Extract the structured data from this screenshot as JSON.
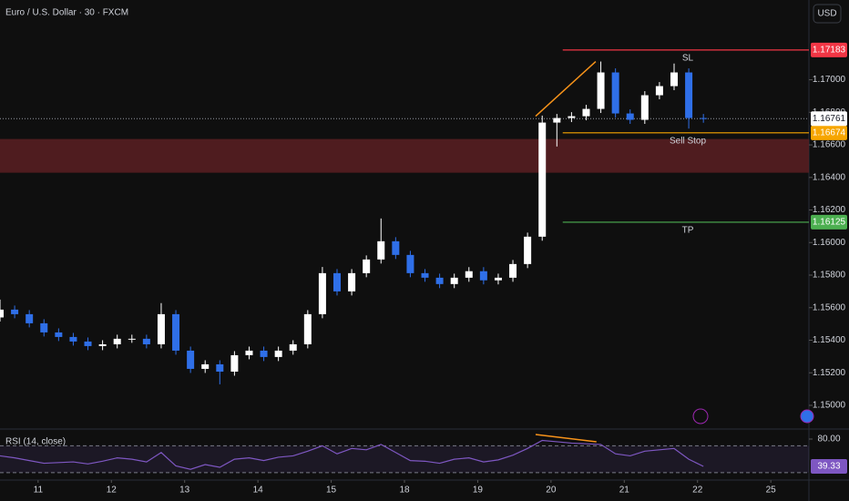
{
  "chart_data": [
    {
      "type": "candlestick",
      "title": "Euro / U.S. Dollar · 30 · FXCM",
      "currency": "USD",
      "x": [
        -0.52,
        -0.32,
        -0.12,
        0.08,
        0.28,
        0.48,
        0.68,
        0.88,
        1.08,
        1.28,
        1.48,
        1.68,
        1.88,
        2.08,
        2.28,
        2.48,
        2.68,
        2.88,
        3.08,
        3.28,
        3.48,
        3.68,
        3.88,
        4.08,
        4.28,
        4.48,
        4.68,
        4.88,
        5.08,
        5.28,
        5.48,
        5.68,
        5.88,
        6.08,
        6.28,
        6.48,
        6.68,
        6.88,
        7.08,
        7.28,
        7.48,
        7.68,
        7.88,
        8.08,
        8.28,
        8.48,
        8.68,
        8.88,
        9.08
      ],
      "open": [
        1.1554,
        1.15588,
        1.1556,
        1.15504,
        1.15448,
        1.1542,
        1.15392,
        1.15364,
        1.15375,
        1.15409,
        1.15409,
        1.15375,
        1.1556,
        1.15336,
        1.15224,
        1.15252,
        1.15207,
        1.15308,
        1.15336,
        1.15297,
        1.15336,
        1.15375,
        1.1556,
        1.15812,
        1.157,
        1.15812,
        1.15896,
        1.16008,
        1.15924,
        1.15812,
        1.15784,
        1.15745,
        1.15784,
        1.15824,
        1.15768,
        1.15784,
        1.15868,
        1.16036,
        1.16737,
        1.16765,
        1.16776,
        1.16821,
        1.17045,
        1.16793,
        1.16754,
        1.16905,
        1.16961,
        1.17045,
        1.16765
      ],
      "high": [
        1.1565,
        1.15613,
        1.15585,
        1.15529,
        1.15473,
        1.15445,
        1.15417,
        1.154,
        1.15434,
        1.15434,
        1.15434,
        1.15628,
        1.15585,
        1.15361,
        1.15277,
        1.15277,
        1.15333,
        1.15361,
        1.15361,
        1.15361,
        1.154,
        1.15585,
        1.1585,
        1.15837,
        1.15837,
        1.15921,
        1.16148,
        1.16033,
        1.15949,
        1.15837,
        1.15809,
        1.15809,
        1.15849,
        1.15849,
        1.15809,
        1.15893,
        1.16061,
        1.1678,
        1.1679,
        1.16801,
        1.16846,
        1.17112,
        1.1707,
        1.16818,
        1.1693,
        1.16986,
        1.171,
        1.1707,
        1.1679
      ],
      "low": [
        1.15515,
        1.15535,
        1.15479,
        1.15423,
        1.15395,
        1.15367,
        1.15339,
        1.15339,
        1.1535,
        1.15384,
        1.1535,
        1.1535,
        1.15311,
        1.15199,
        1.15199,
        1.15129,
        1.15182,
        1.15283,
        1.15272,
        1.15272,
        1.15311,
        1.1535,
        1.15535,
        1.15675,
        1.15675,
        1.15787,
        1.15871,
        1.15899,
        1.15787,
        1.15759,
        1.1572,
        1.1572,
        1.15759,
        1.15743,
        1.15743,
        1.15759,
        1.15843,
        1.16011,
        1.1659,
        1.1674,
        1.16751,
        1.16796,
        1.16768,
        1.16729,
        1.16729,
        1.1688,
        1.16936,
        1.167,
        1.16736
      ],
      "close": [
        1.15588,
        1.1556,
        1.15504,
        1.15448,
        1.1542,
        1.15392,
        1.15364,
        1.15375,
        1.15409,
        1.15409,
        1.15375,
        1.1556,
        1.15336,
        1.15224,
        1.15252,
        1.15207,
        1.15308,
        1.15336,
        1.15297,
        1.15336,
        1.15375,
        1.1556,
        1.15812,
        1.157,
        1.15812,
        1.15896,
        1.16008,
        1.15924,
        1.15812,
        1.15784,
        1.15745,
        1.15784,
        1.15824,
        1.15768,
        1.15784,
        1.15868,
        1.16036,
        1.16737,
        1.16765,
        1.16776,
        1.16821,
        1.17045,
        1.16793,
        1.16754,
        1.16905,
        1.16961,
        1.17045,
        1.16765,
        1.16761
      ],
      "up_color": "#ffffff",
      "down_color": "#2f6fe8",
      "xlim": [
        -0.52,
        10.52
      ],
      "xticks": [
        {
          "value": 0,
          "label": "11"
        },
        {
          "value": 1,
          "label": "12"
        },
        {
          "value": 2,
          "label": "13"
        },
        {
          "value": 3,
          "label": "14"
        },
        {
          "value": 4,
          "label": "15"
        },
        {
          "value": 5,
          "label": "18"
        },
        {
          "value": 6,
          "label": "19"
        },
        {
          "value": 7,
          "label": "20"
        },
        {
          "value": 8,
          "label": "21"
        },
        {
          "value": 9,
          "label": "22"
        },
        {
          "value": 10,
          "label": "25"
        }
      ],
      "ylim": [
        1.1486,
        1.1749
      ],
      "yticks": [
        {
          "value": 1.15,
          "label": "1.15000"
        },
        {
          "value": 1.152,
          "label": "1.15200"
        },
        {
          "value": 1.154,
          "label": "1.15400"
        },
        {
          "value": 1.156,
          "label": "1.15600"
        },
        {
          "value": 1.158,
          "label": "1.15800"
        },
        {
          "value": 1.16,
          "label": "1.16000"
        },
        {
          "value": 1.162,
          "label": "1.16200"
        },
        {
          "value": 1.164,
          "label": "1.16400"
        },
        {
          "value": 1.166,
          "label": "1.16600"
        },
        {
          "value": 1.168,
          "label": "1.16800"
        },
        {
          "value": 1.17,
          "label": "1.17000"
        }
      ],
      "zones": [
        {
          "from": 1.16429,
          "to": 1.16636,
          "color": "#5a1e22"
        }
      ],
      "levels": [
        {
          "name": "SL",
          "value": 1.17183,
          "color": "#f23645",
          "from_x": 7.16
        },
        {
          "name": "Sell Stop",
          "value": 1.16674,
          "color": "#f7a600",
          "from_x": 7.16
        },
        {
          "name": "TP",
          "value": 1.16125,
          "color": "#4caf50",
          "from_x": 7.16
        }
      ],
      "trendlines": [
        {
          "x": [
            6.79,
            7.61
          ],
          "y": [
            1.16776,
            1.17112
          ],
          "color": "#f7931a"
        }
      ]
    },
    {
      "type": "line",
      "title": "RSI (14, close)",
      "values": [
        55,
        52,
        48,
        44,
        45,
        46,
        43,
        47,
        52,
        50,
        46,
        60,
        40,
        35,
        42,
        38,
        50,
        52,
        48,
        53,
        55,
        62,
        70,
        58,
        66,
        64,
        72,
        60,
        48,
        47,
        44,
        50,
        52,
        46,
        49,
        56,
        66,
        78,
        76,
        74,
        73,
        72,
        58,
        55,
        62,
        64,
        66,
        50,
        39.33
      ],
      "color": "#7e57c2",
      "ylim": [
        21.7,
        89.5
      ],
      "yticks": [
        {
          "value": 80,
          "label": "80.00"
        }
      ],
      "band": [
        30,
        70
      ],
      "trendlines": [
        {
          "x": [
            6.79,
            7.62
          ],
          "y": [
            86.8,
            75.9
          ],
          "color": "#f7931a"
        }
      ]
    }
  ]
}
